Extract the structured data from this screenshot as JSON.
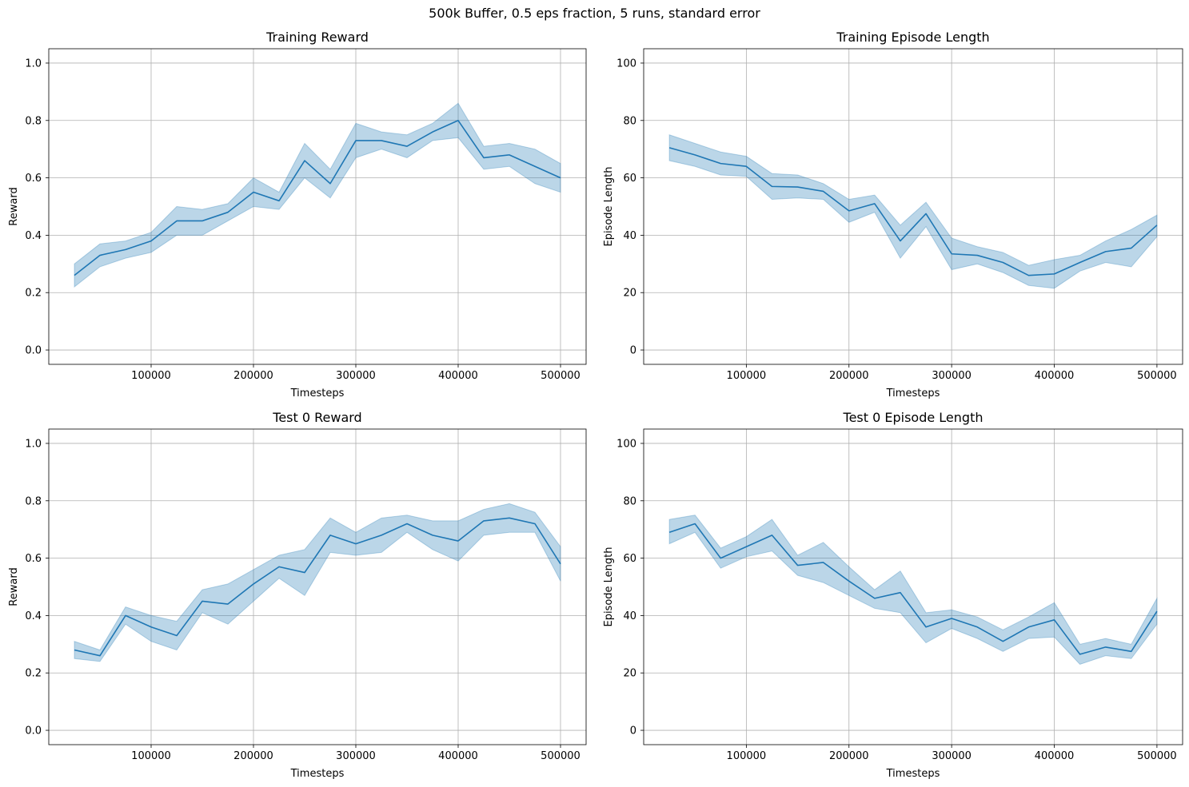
{
  "suptitle": "500k Buffer, 0.5 eps fraction, 5 runs, standard error",
  "colors": {
    "line": "#1f77b4",
    "band": "#1f77b4",
    "grid": "#b0b0b0",
    "axes": "#000000"
  },
  "chart_data": [
    {
      "type": "line",
      "title": "Training Reward",
      "xlabel": "Timesteps",
      "ylabel": "Reward",
      "xlim": [
        0,
        525000
      ],
      "ylim": [
        -0.05,
        1.05
      ],
      "xticks": [
        100000,
        200000,
        300000,
        400000,
        500000
      ],
      "yticks": [
        0.0,
        0.2,
        0.4,
        0.6,
        0.8,
        1.0
      ],
      "ytick_labels": [
        "0.0",
        "0.2",
        "0.4",
        "0.6",
        "0.8",
        "1.0"
      ],
      "grid": true,
      "x": [
        25000,
        50000,
        75000,
        100000,
        125000,
        150000,
        175000,
        200000,
        225000,
        250000,
        275000,
        300000,
        325000,
        350000,
        375000,
        400000,
        425000,
        450000,
        475000,
        500000
      ],
      "series": [
        {
          "values": [
            0.26,
            0.33,
            0.35,
            0.38,
            0.45,
            0.45,
            0.48,
            0.55,
            0.52,
            0.66,
            0.58,
            0.73,
            0.73,
            0.71,
            0.76,
            0.8,
            0.67,
            0.68,
            0.64,
            0.6
          ],
          "lower": [
            0.22,
            0.29,
            0.32,
            0.34,
            0.4,
            0.4,
            0.45,
            0.5,
            0.49,
            0.6,
            0.53,
            0.67,
            0.7,
            0.67,
            0.73,
            0.74,
            0.63,
            0.64,
            0.58,
            0.55
          ],
          "upper": [
            0.3,
            0.37,
            0.38,
            0.41,
            0.5,
            0.49,
            0.51,
            0.6,
            0.55,
            0.72,
            0.63,
            0.79,
            0.76,
            0.75,
            0.79,
            0.86,
            0.71,
            0.72,
            0.7,
            0.65
          ]
        }
      ]
    },
    {
      "type": "line",
      "title": "Training Episode Length",
      "xlabel": "Timesteps",
      "ylabel": "Episode Length",
      "xlim": [
        0,
        525000
      ],
      "ylim": [
        -5,
        105
      ],
      "xticks": [
        100000,
        200000,
        300000,
        400000,
        500000
      ],
      "yticks": [
        0,
        20,
        40,
        60,
        80,
        100
      ],
      "ytick_labels": [
        "0",
        "20",
        "40",
        "60",
        "80",
        "100"
      ],
      "grid": true,
      "x": [
        25000,
        50000,
        75000,
        100000,
        125000,
        150000,
        175000,
        200000,
        225000,
        250000,
        275000,
        300000,
        325000,
        350000,
        375000,
        400000,
        425000,
        450000,
        475000,
        500000
      ],
      "series": [
        {
          "values": [
            70.5,
            68,
            65,
            64,
            57,
            56.8,
            55.3,
            48.5,
            51,
            38,
            47.5,
            33.5,
            33,
            30.5,
            26,
            26.5,
            30.5,
            34.3,
            35.5,
            43.5
          ],
          "lower": [
            66,
            64,
            61,
            60.5,
            52.5,
            53,
            52.5,
            44.5,
            48,
            32,
            43,
            28,
            30,
            27,
            22.5,
            21.5,
            27.5,
            30.5,
            29,
            39.5
          ],
          "upper": [
            75,
            72,
            69,
            67.5,
            61.5,
            61,
            58,
            52.5,
            54,
            43.5,
            51.5,
            39,
            36,
            34,
            29.5,
            31.5,
            33,
            38,
            42,
            47
          ]
        }
      ]
    },
    {
      "type": "line",
      "title": "Test 0 Reward",
      "xlabel": "Timesteps",
      "ylabel": "Reward",
      "xlim": [
        0,
        525000
      ],
      "ylim": [
        -0.05,
        1.05
      ],
      "xticks": [
        100000,
        200000,
        300000,
        400000,
        500000
      ],
      "yticks": [
        0.0,
        0.2,
        0.4,
        0.6,
        0.8,
        1.0
      ],
      "ytick_labels": [
        "0.0",
        "0.2",
        "0.4",
        "0.6",
        "0.8",
        "1.0"
      ],
      "grid": true,
      "x": [
        25000,
        50000,
        75000,
        100000,
        125000,
        150000,
        175000,
        200000,
        225000,
        250000,
        275000,
        300000,
        325000,
        350000,
        375000,
        400000,
        425000,
        450000,
        475000,
        500000
      ],
      "series": [
        {
          "values": [
            0.28,
            0.26,
            0.4,
            0.36,
            0.33,
            0.45,
            0.44,
            0.51,
            0.57,
            0.55,
            0.68,
            0.65,
            0.68,
            0.72,
            0.68,
            0.66,
            0.73,
            0.74,
            0.72,
            0.58
          ],
          "lower": [
            0.25,
            0.24,
            0.37,
            0.31,
            0.28,
            0.41,
            0.37,
            0.45,
            0.53,
            0.47,
            0.62,
            0.61,
            0.62,
            0.69,
            0.63,
            0.59,
            0.68,
            0.69,
            0.69,
            0.52
          ],
          "upper": [
            0.31,
            0.28,
            0.43,
            0.4,
            0.38,
            0.49,
            0.51,
            0.56,
            0.61,
            0.63,
            0.74,
            0.69,
            0.74,
            0.75,
            0.73,
            0.73,
            0.77,
            0.79,
            0.76,
            0.64
          ]
        }
      ]
    },
    {
      "type": "line",
      "title": "Test 0 Episode Length",
      "xlabel": "Timesteps",
      "ylabel": "Episode Length",
      "xlim": [
        0,
        525000
      ],
      "ylim": [
        -5,
        105
      ],
      "xticks": [
        100000,
        200000,
        300000,
        400000,
        500000
      ],
      "yticks": [
        0,
        20,
        40,
        60,
        80,
        100
      ],
      "ytick_labels": [
        "0",
        "20",
        "40",
        "60",
        "80",
        "100"
      ],
      "grid": true,
      "x": [
        25000,
        50000,
        75000,
        100000,
        125000,
        150000,
        175000,
        200000,
        225000,
        250000,
        275000,
        300000,
        325000,
        350000,
        375000,
        400000,
        425000,
        450000,
        475000,
        500000
      ],
      "series": [
        {
          "values": [
            69,
            72,
            60,
            64,
            68,
            57.5,
            58.5,
            52,
            46,
            48,
            36,
            39,
            36,
            31,
            36,
            38.5,
            26.5,
            29,
            27.5,
            41.5
          ],
          "lower": [
            65,
            69,
            56.5,
            60.5,
            62.5,
            54,
            51.5,
            47,
            42.5,
            41,
            30.5,
            35.5,
            32,
            27.5,
            32,
            32.5,
            23,
            26,
            25,
            37
          ],
          "upper": [
            73.5,
            75,
            63.5,
            67.5,
            73.5,
            61,
            65.5,
            57,
            49,
            55.5,
            41,
            42,
            39.5,
            35,
            39.5,
            44.5,
            30,
            32,
            30,
            46
          ]
        }
      ]
    }
  ]
}
